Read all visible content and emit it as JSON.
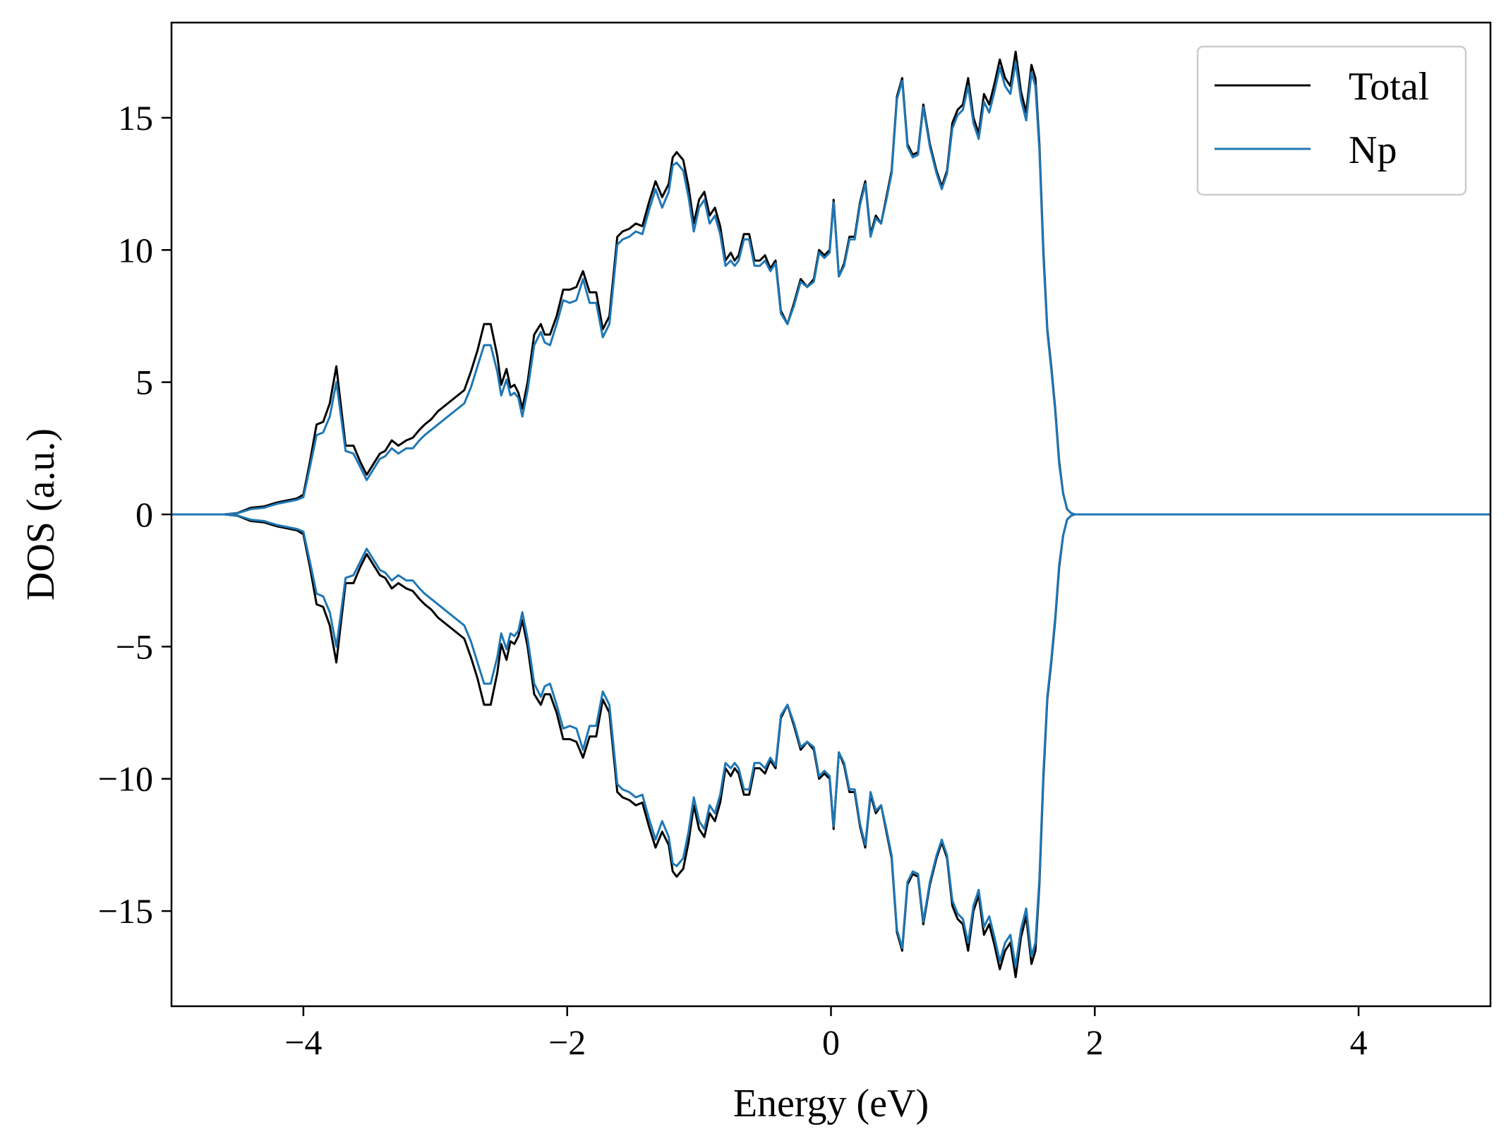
{
  "chart_data": {
    "type": "line",
    "title": "",
    "xlabel": "Energy (eV)",
    "ylabel": "DOS (a.u.)",
    "xlim": [
      -5,
      5
    ],
    "ylim": [
      -18.6,
      18.6
    ],
    "xticks": [
      -4,
      -2,
      0,
      2,
      4
    ],
    "xtick_labels": [
      "−4",
      "−2",
      "0",
      "2",
      "4"
    ],
    "yticks": [
      -15,
      -10,
      -5,
      0,
      5,
      10,
      15
    ],
    "ytick_labels": [
      "−15",
      "−10",
      "−5",
      "0",
      "5",
      "10",
      "15"
    ],
    "grid": false,
    "legend_position": "top-right",
    "mirrored_spin_down": true,
    "series": [
      {
        "name": "Total",
        "color": "#000000",
        "x": [
          -5.0,
          -4.6,
          -4.5,
          -4.4,
          -4.3,
          -4.2,
          -4.1,
          -4.05,
          -4.0,
          -3.95,
          -3.9,
          -3.85,
          -3.8,
          -3.75,
          -3.72,
          -3.68,
          -3.62,
          -3.57,
          -3.52,
          -3.47,
          -3.42,
          -3.38,
          -3.33,
          -3.28,
          -3.22,
          -3.17,
          -3.12,
          -3.08,
          -3.03,
          -2.98,
          -2.93,
          -2.88,
          -2.83,
          -2.78,
          -2.73,
          -2.68,
          -2.63,
          -2.58,
          -2.53,
          -2.5,
          -2.46,
          -2.43,
          -2.4,
          -2.37,
          -2.34,
          -2.3,
          -2.25,
          -2.2,
          -2.17,
          -2.13,
          -2.08,
          -2.03,
          -1.98,
          -1.93,
          -1.88,
          -1.83,
          -1.78,
          -1.73,
          -1.68,
          -1.65,
          -1.62,
          -1.58,
          -1.53,
          -1.48,
          -1.43,
          -1.38,
          -1.33,
          -1.28,
          -1.23,
          -1.2,
          -1.17,
          -1.12,
          -1.08,
          -1.04,
          -1.0,
          -0.96,
          -0.92,
          -0.88,
          -0.84,
          -0.8,
          -0.76,
          -0.73,
          -0.7,
          -0.66,
          -0.62,
          -0.58,
          -0.54,
          -0.5,
          -0.46,
          -0.42,
          -0.38,
          -0.33,
          -0.28,
          -0.23,
          -0.18,
          -0.13,
          -0.09,
          -0.05,
          -0.01,
          0.02,
          0.06,
          0.1,
          0.14,
          0.18,
          0.22,
          0.26,
          0.3,
          0.34,
          0.38,
          0.42,
          0.46,
          0.5,
          0.54,
          0.58,
          0.62,
          0.66,
          0.7,
          0.75,
          0.8,
          0.84,
          0.88,
          0.92,
          0.96,
          1.0,
          1.04,
          1.08,
          1.12,
          1.16,
          1.2,
          1.24,
          1.28,
          1.32,
          1.36,
          1.4,
          1.44,
          1.48,
          1.52,
          1.55,
          1.58,
          1.61,
          1.64,
          1.67,
          1.7,
          1.73,
          1.76,
          1.79,
          1.82,
          1.85,
          1.88,
          1.91,
          1.94,
          1.97,
          2.0,
          2.03,
          2.06,
          2.09,
          2.12,
          2.16,
          2.2,
          2.24,
          2.28,
          2.32,
          2.36,
          2.4,
          2.44,
          2.48,
          2.52,
          2.56,
          2.6,
          2.65,
          2.7,
          2.8,
          3.0,
          5.0
        ],
        "y": [
          0,
          0,
          0.05,
          0.25,
          0.3,
          0.45,
          0.55,
          0.6,
          0.75,
          2.0,
          3.4,
          3.5,
          4.2,
          5.6,
          4.3,
          2.6,
          2.6,
          2.0,
          1.5,
          1.9,
          2.3,
          2.4,
          2.8,
          2.6,
          2.8,
          2.9,
          3.2,
          3.4,
          3.6,
          3.9,
          4.1,
          4.3,
          4.5,
          4.7,
          5.4,
          6.2,
          7.2,
          7.2,
          6.0,
          4.9,
          5.5,
          4.8,
          4.9,
          4.6,
          4.0,
          5.0,
          6.8,
          7.2,
          6.8,
          6.8,
          7.5,
          8.5,
          8.5,
          8.6,
          9.2,
          8.4,
          8.4,
          7.0,
          7.5,
          9.0,
          10.5,
          10.7,
          10.8,
          11.0,
          10.9,
          11.8,
          12.6,
          12.0,
          12.5,
          13.5,
          13.7,
          13.4,
          12.4,
          11.0,
          11.9,
          12.2,
          11.3,
          11.6,
          10.9,
          9.6,
          9.9,
          9.6,
          9.8,
          10.6,
          10.6,
          9.6,
          9.6,
          9.8,
          9.3,
          9.6,
          7.7,
          7.2,
          8.0,
          8.9,
          8.6,
          8.9,
          10.0,
          9.8,
          10.0,
          11.9,
          9.0,
          9.5,
          10.5,
          10.5,
          11.8,
          12.6,
          10.6,
          11.3,
          11.0,
          12.0,
          13.0,
          15.8,
          16.5,
          14.0,
          13.6,
          13.7,
          15.5,
          14.0,
          13.0,
          12.4,
          13.0,
          14.8,
          15.3,
          15.5,
          16.5,
          15.0,
          14.4,
          15.9,
          15.5,
          16.3,
          17.2,
          16.5,
          16.2,
          17.5,
          16.0,
          15.2,
          17.0,
          16.5,
          14.0,
          10.0,
          7.0,
          5.6,
          4.0,
          2.0,
          0.8,
          0.2,
          0.05,
          0,
          0,
          0,
          0,
          0,
          0,
          0,
          0,
          0,
          0,
          0,
          0,
          0,
          0,
          0,
          0,
          0,
          0,
          0,
          0,
          0,
          0,
          0,
          0,
          0,
          0,
          0
        ]
      },
      {
        "name": "Np",
        "color": "#1f77b4",
        "x": [
          -5.0,
          -4.6,
          -4.5,
          -4.4,
          -4.3,
          -4.2,
          -4.1,
          -4.05,
          -4.0,
          -3.95,
          -3.9,
          -3.85,
          -3.8,
          -3.75,
          -3.72,
          -3.68,
          -3.62,
          -3.57,
          -3.52,
          -3.47,
          -3.42,
          -3.38,
          -3.33,
          -3.28,
          -3.22,
          -3.17,
          -3.12,
          -3.08,
          -3.03,
          -2.98,
          -2.93,
          -2.88,
          -2.83,
          -2.78,
          -2.73,
          -2.68,
          -2.63,
          -2.58,
          -2.53,
          -2.5,
          -2.46,
          -2.43,
          -2.4,
          -2.37,
          -2.34,
          -2.3,
          -2.25,
          -2.2,
          -2.17,
          -2.13,
          -2.08,
          -2.03,
          -1.98,
          -1.93,
          -1.88,
          -1.83,
          -1.78,
          -1.73,
          -1.68,
          -1.65,
          -1.62,
          -1.58,
          -1.53,
          -1.48,
          -1.43,
          -1.38,
          -1.33,
          -1.28,
          -1.23,
          -1.2,
          -1.17,
          -1.12,
          -1.08,
          -1.04,
          -1.0,
          -0.96,
          -0.92,
          -0.88,
          -0.84,
          -0.8,
          -0.76,
          -0.73,
          -0.7,
          -0.66,
          -0.62,
          -0.58,
          -0.54,
          -0.5,
          -0.46,
          -0.42,
          -0.38,
          -0.33,
          -0.28,
          -0.23,
          -0.18,
          -0.13,
          -0.09,
          -0.05,
          -0.01,
          0.02,
          0.06,
          0.1,
          0.14,
          0.18,
          0.22,
          0.26,
          0.3,
          0.34,
          0.38,
          0.42,
          0.46,
          0.5,
          0.54,
          0.58,
          0.62,
          0.66,
          0.7,
          0.75,
          0.8,
          0.84,
          0.88,
          0.92,
          0.96,
          1.0,
          1.04,
          1.08,
          1.12,
          1.16,
          1.2,
          1.24,
          1.28,
          1.32,
          1.36,
          1.4,
          1.44,
          1.48,
          1.52,
          1.55,
          1.58,
          1.61,
          1.64,
          1.67,
          1.7,
          1.73,
          1.76,
          1.79,
          1.82,
          1.85,
          1.88,
          1.91,
          1.94,
          1.97,
          2.0,
          2.03,
          2.06,
          2.09,
          2.12,
          2.16,
          2.2,
          2.24,
          2.28,
          2.32,
          2.36,
          2.4,
          2.44,
          2.48,
          2.52,
          2.56,
          2.6,
          2.65,
          2.7,
          2.8,
          3.0,
          5.0
        ],
        "y": [
          0,
          0,
          0.04,
          0.2,
          0.25,
          0.4,
          0.5,
          0.55,
          0.65,
          1.8,
          3.0,
          3.1,
          3.7,
          5.0,
          3.9,
          2.4,
          2.3,
          1.8,
          1.3,
          1.7,
          2.1,
          2.2,
          2.5,
          2.3,
          2.5,
          2.5,
          2.8,
          3.0,
          3.2,
          3.4,
          3.6,
          3.8,
          4.0,
          4.2,
          4.8,
          5.6,
          6.4,
          6.4,
          5.4,
          4.5,
          5.1,
          4.5,
          4.6,
          4.4,
          3.7,
          4.7,
          6.4,
          6.9,
          6.5,
          6.4,
          7.2,
          8.1,
          8.0,
          8.1,
          8.9,
          8.0,
          8.0,
          6.7,
          7.2,
          8.7,
          10.2,
          10.4,
          10.5,
          10.7,
          10.6,
          11.5,
          12.3,
          11.6,
          12.2,
          13.2,
          13.3,
          13.0,
          12.0,
          10.7,
          11.6,
          11.9,
          11.0,
          11.3,
          10.6,
          9.4,
          9.6,
          9.4,
          9.6,
          10.4,
          10.4,
          9.4,
          9.4,
          9.6,
          9.2,
          9.5,
          7.6,
          7.2,
          7.9,
          8.8,
          8.6,
          8.8,
          9.9,
          9.7,
          9.9,
          11.8,
          9.0,
          9.4,
          10.4,
          10.4,
          11.7,
          12.5,
          10.5,
          11.2,
          11.0,
          11.9,
          12.9,
          15.7,
          16.4,
          13.9,
          13.5,
          13.6,
          15.4,
          13.9,
          12.9,
          12.3,
          12.9,
          14.6,
          15.1,
          15.3,
          16.2,
          14.8,
          14.2,
          15.6,
          15.2,
          16.0,
          16.9,
          16.2,
          15.9,
          17.1,
          15.7,
          14.9,
          16.7,
          16.2,
          13.8,
          9.8,
          6.9,
          5.5,
          3.9,
          1.9,
          0.8,
          0.2,
          0.05,
          0,
          0,
          0,
          0,
          0,
          0,
          0,
          0,
          0,
          0,
          0,
          0,
          0,
          0,
          0,
          0,
          0,
          0,
          0,
          0,
          0,
          0,
          0,
          0,
          0,
          0,
          0
        ]
      }
    ]
  }
}
